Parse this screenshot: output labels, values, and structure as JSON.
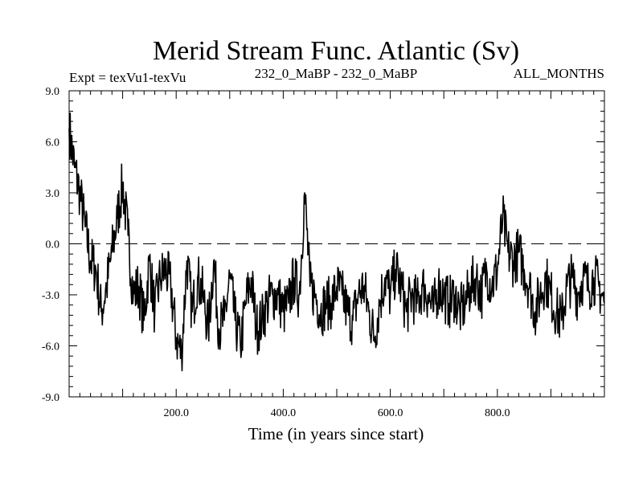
{
  "chart_data": {
    "type": "line",
    "title": "Merid Stream Func. Atlantic (Sv)",
    "subtitle_left": "Expt = texVu1-texVu",
    "subtitle_center": "232_0_MaBP - 232_0_MaBP",
    "subtitle_right": "ALL_MONTHS",
    "xlabel": "Time (in years since start)",
    "ylabel": "",
    "xlim": [
      0,
      1000
    ],
    "ylim": [
      -9,
      9
    ],
    "x_ticks": [
      200,
      400,
      600,
      800
    ],
    "x_tick_labels": [
      "200.0",
      "400.0",
      "600.0",
      "800.0"
    ],
    "y_ticks": [
      9,
      6,
      3,
      0,
      -3,
      -6,
      -9
    ],
    "y_tick_labels": [
      "9.0",
      "6.0",
      "3.0",
      "0.0",
      "-3.0",
      "-6.0",
      "-9.0"
    ],
    "reference_line": 0,
    "series": [
      {
        "name": "Merid Stream Func. Atlantic",
        "x": [
          0,
          10,
          20,
          30,
          40,
          50,
          60,
          70,
          80,
          90,
          100,
          110,
          120,
          130,
          140,
          150,
          160,
          170,
          180,
          190,
          200,
          210,
          220,
          230,
          240,
          250,
          260,
          270,
          280,
          290,
          300,
          310,
          320,
          330,
          340,
          350,
          360,
          370,
          380,
          390,
          400,
          410,
          420,
          430,
          440,
          450,
          460,
          470,
          480,
          490,
          500,
          510,
          520,
          530,
          540,
          550,
          560,
          570,
          580,
          590,
          600,
          610,
          620,
          630,
          640,
          650,
          660,
          670,
          680,
          690,
          700,
          710,
          720,
          730,
          740,
          750,
          760,
          770,
          780,
          790,
          800,
          810,
          820,
          830,
          840,
          850,
          860,
          870,
          880,
          890,
          900,
          910,
          920,
          930,
          940,
          950,
          960,
          970,
          980,
          990,
          1000
        ],
        "values": [
          6.8,
          4.5,
          3.0,
          1.0,
          -1.0,
          -1.5,
          -4.0,
          -2.5,
          -0.5,
          1.5,
          3.5,
          0.5,
          -3.0,
          -2.5,
          -4.5,
          -1.0,
          -4.0,
          -2.0,
          -1.5,
          -2.5,
          -5.5,
          -6.5,
          -1.0,
          -4.0,
          -2.0,
          -3.0,
          -5.0,
          -1.0,
          -5.0,
          -4.5,
          -2.0,
          -4.5,
          -6.0,
          -3.5,
          -2.0,
          -5.0,
          -4.5,
          -3.5,
          -3.0,
          -3.0,
          -4.0,
          -3.5,
          -2.0,
          -3.0,
          3.0,
          -2.5,
          -3.0,
          -4.0,
          -3.5,
          -3.5,
          -2.5,
          -3.0,
          -4.0,
          -4.5,
          -3.0,
          -2.5,
          -4.0,
          -5.5,
          -3.5,
          -2.0,
          -3.0,
          -1.5,
          -2.5,
          -4.0,
          -3.0,
          -3.5,
          -2.5,
          -3.0,
          -4.0,
          -2.5,
          -3.0,
          -3.5,
          -3.0,
          -4.0,
          -3.5,
          -2.5,
          -2.0,
          -3.0,
          -1.5,
          -2.5,
          -1.5,
          1.5,
          -0.5,
          -1.0,
          -0.5,
          -1.5,
          -2.5,
          -4.0,
          -3.0,
          -2.0,
          -3.0,
          -4.0,
          -4.5,
          -2.5,
          -2.0,
          -3.0,
          -2.0,
          -2.5,
          -2.0,
          -2.5,
          -3.5
        ]
      }
    ]
  }
}
